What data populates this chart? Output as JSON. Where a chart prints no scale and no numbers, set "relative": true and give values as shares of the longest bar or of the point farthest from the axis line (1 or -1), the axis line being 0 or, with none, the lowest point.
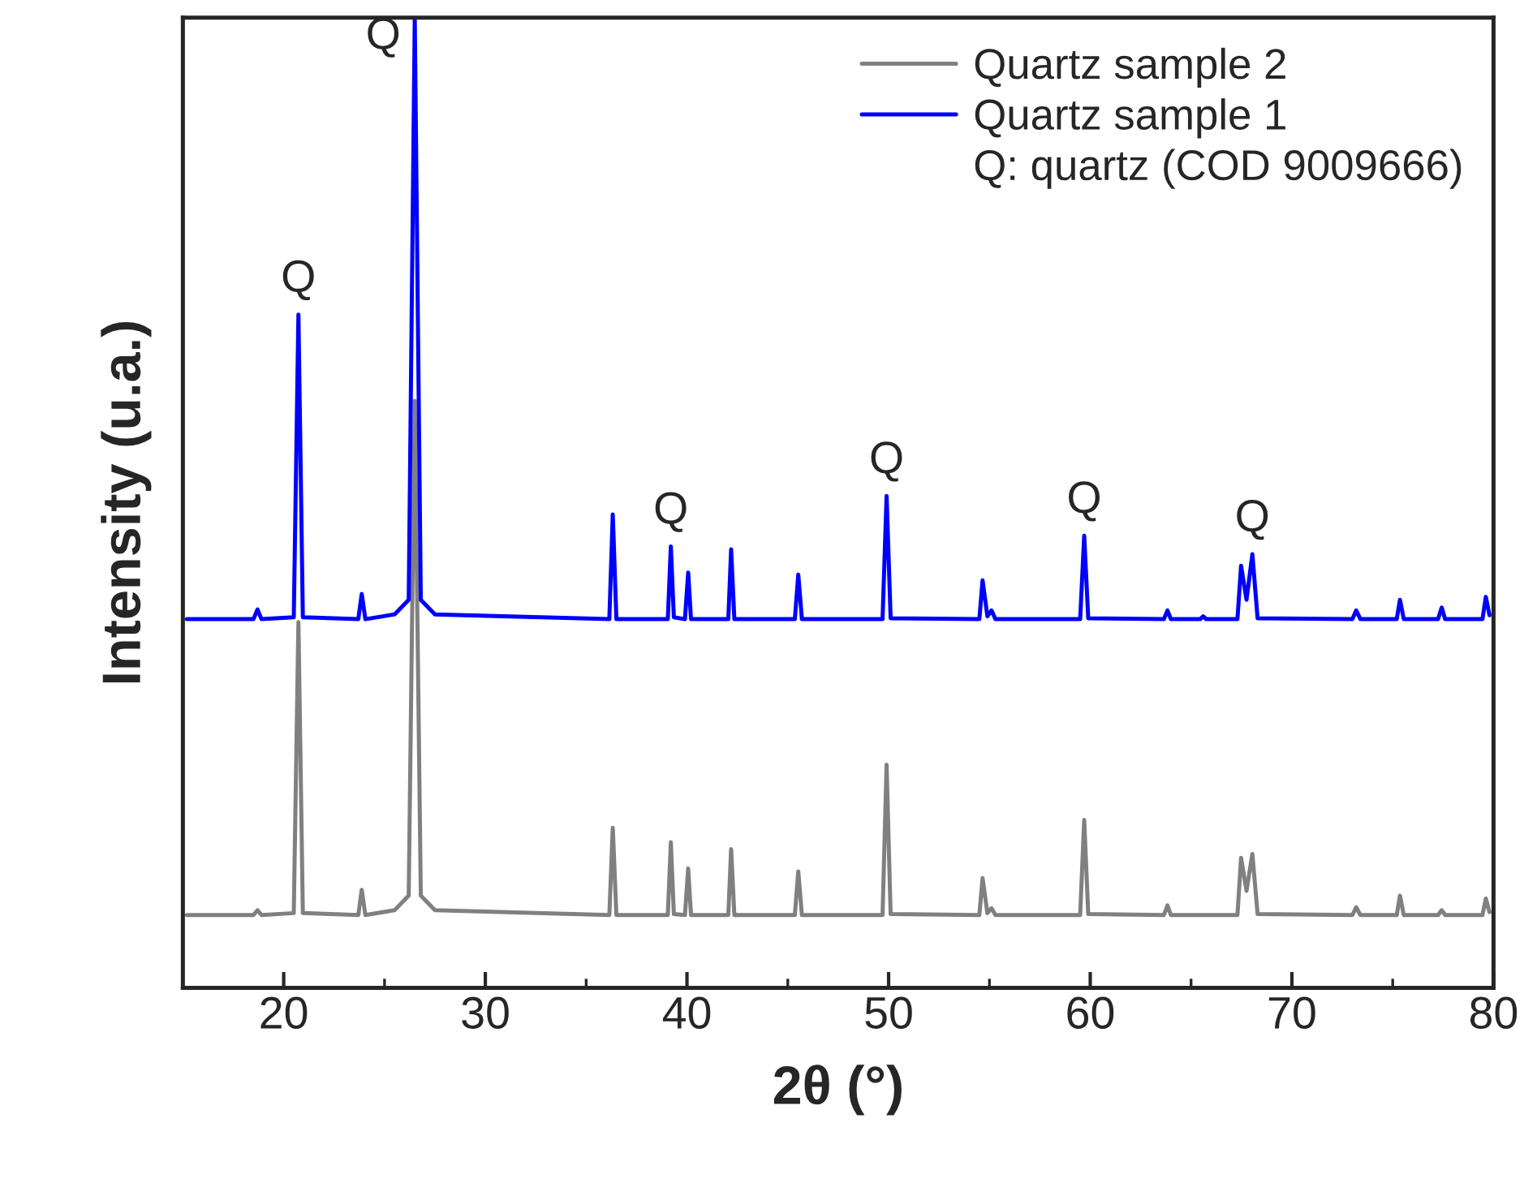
{
  "chart_data": {
    "type": "line",
    "relative": true,
    "xlabel": "2θ (°)",
    "ylabel": "Intensity (u.a.)",
    "xlim": [
      15,
      80
    ],
    "xticks": [
      20,
      30,
      40,
      50,
      60,
      70,
      80
    ],
    "grid": false,
    "legend": "top right",
    "marker": "none",
    "line_style": "solid",
    "series": [
      {
        "name": "Quartz sample 2",
        "color": "#808080",
        "x": [
          15.2,
          18.5,
          18.7,
          18.9,
          20.5,
          20.73,
          20.95,
          23.7,
          23.87,
          24.05,
          25.5,
          26.2,
          26.5,
          26.8,
          27.5,
          36.15,
          36.32,
          36.5,
          39.05,
          39.2,
          39.35,
          39.9,
          40.06,
          40.2,
          42.05,
          42.19,
          42.35,
          45.35,
          45.52,
          45.7,
          49.7,
          49.9,
          50.1,
          54.5,
          54.66,
          54.9,
          55.1,
          55.3,
          59.5,
          59.7,
          59.9,
          63.65,
          63.83,
          64.0,
          67.3,
          67.48,
          67.75,
          68.04,
          68.3,
          73.0,
          73.19,
          73.4,
          75.2,
          75.36,
          75.55,
          77.25,
          77.43,
          77.6,
          79.45,
          79.62,
          79.8
        ],
        "values": [
          0.075,
          0.075,
          0.08,
          0.075,
          0.077,
          0.377,
          0.077,
          0.075,
          0.101,
          0.075,
          0.08,
          0.095,
          0.605,
          0.095,
          0.08,
          0.075,
          0.165,
          0.075,
          0.075,
          0.15,
          0.076,
          0.075,
          0.123,
          0.075,
          0.075,
          0.143,
          0.075,
          0.075,
          0.12,
          0.075,
          0.075,
          0.23,
          0.076,
          0.075,
          0.113,
          0.077,
          0.082,
          0.075,
          0.075,
          0.173,
          0.076,
          0.075,
          0.085,
          0.075,
          0.075,
          0.134,
          0.1,
          0.138,
          0.076,
          0.075,
          0.083,
          0.075,
          0.075,
          0.095,
          0.075,
          0.075,
          0.08,
          0.075,
          0.075,
          0.092,
          0.078
        ]
      },
      {
        "name": "Quartz sample 1",
        "color": "#0000ff",
        "x": [
          15.2,
          18.5,
          18.7,
          18.9,
          20.5,
          20.73,
          20.95,
          23.7,
          23.87,
          24.05,
          25.5,
          26.2,
          26.5,
          26.8,
          27.5,
          36.15,
          36.32,
          36.5,
          39.05,
          39.2,
          39.35,
          39.9,
          40.06,
          40.2,
          42.05,
          42.19,
          42.35,
          45.35,
          45.52,
          45.7,
          49.7,
          49.9,
          50.1,
          54.5,
          54.66,
          54.9,
          55.1,
          55.3,
          59.5,
          59.7,
          59.9,
          63.65,
          63.83,
          64.0,
          65.45,
          65.6,
          65.75,
          67.3,
          67.48,
          67.75,
          68.04,
          68.3,
          73.0,
          73.19,
          73.4,
          75.2,
          75.36,
          75.55,
          77.25,
          77.43,
          77.6,
          79.45,
          79.62,
          79.8
        ],
        "values": [
          0.38,
          0.38,
          0.39,
          0.38,
          0.382,
          0.694,
          0.382,
          0.38,
          0.406,
          0.38,
          0.385,
          0.4,
          1.0,
          0.4,
          0.385,
          0.38,
          0.488,
          0.38,
          0.38,
          0.455,
          0.382,
          0.38,
          0.428,
          0.38,
          0.38,
          0.452,
          0.38,
          0.38,
          0.426,
          0.38,
          0.38,
          0.507,
          0.381,
          0.38,
          0.42,
          0.383,
          0.389,
          0.38,
          0.38,
          0.466,
          0.381,
          0.38,
          0.389,
          0.38,
          0.38,
          0.383,
          0.38,
          0.38,
          0.435,
          0.4,
          0.447,
          0.381,
          0.38,
          0.389,
          0.38,
          0.38,
          0.4,
          0.38,
          0.38,
          0.392,
          0.38,
          0.38,
          0.403,
          0.384
        ]
      }
    ],
    "annotations": [
      "Q: quartz (COD 9009666)",
      {
        "text": "Q",
        "x": 20.73,
        "y": 0.694
      },
      {
        "text": "Q",
        "x": 26.5,
        "y": 1.0
      },
      {
        "text": "Q",
        "x": 39.2,
        "y": 0.455
      },
      {
        "text": "Q",
        "x": 49.9,
        "y": 0.507
      },
      {
        "text": "Q",
        "x": 59.7,
        "y": 0.466
      },
      {
        "text": "Q",
        "x": 68.04,
        "y": 0.447
      }
    ]
  }
}
